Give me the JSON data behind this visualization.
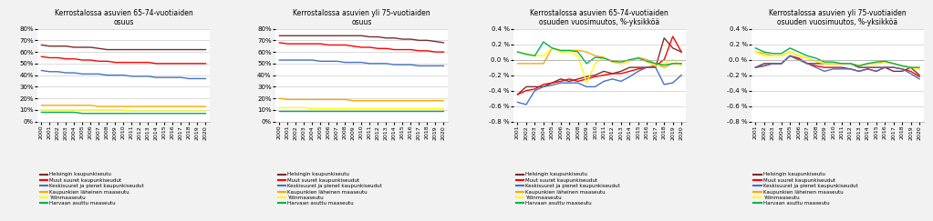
{
  "years_2000": [
    2000,
    2001,
    2002,
    2003,
    2004,
    2005,
    2006,
    2007,
    2008,
    2009,
    2010,
    2011,
    2012,
    2013,
    2014,
    2015,
    2016,
    2017,
    2018,
    2019,
    2020
  ],
  "years_2001": [
    2001,
    2002,
    2003,
    2004,
    2005,
    2006,
    2007,
    2008,
    2009,
    2010,
    2011,
    2012,
    2013,
    2014,
    2015,
    2016,
    2017,
    2018,
    2019,
    2020
  ],
  "chart1": {
    "title": "Kerrostalossa asuvien 65-74-vuotiaiden\nosuus",
    "helsingin": [
      66,
      65,
      65,
      65,
      64,
      64,
      64,
      63,
      62,
      62,
      62,
      62,
      62,
      62,
      62,
      62,
      62,
      62,
      62,
      62,
      62
    ],
    "muut": [
      56,
      55,
      55,
      54,
      54,
      53,
      53,
      52,
      52,
      51,
      51,
      51,
      51,
      51,
      50,
      50,
      50,
      50,
      50,
      50,
      50
    ],
    "keskisuuret": [
      44,
      43,
      43,
      42,
      42,
      41,
      41,
      41,
      40,
      40,
      40,
      39,
      39,
      39,
      38,
      38,
      38,
      38,
      37,
      37,
      37
    ],
    "kaupunkien": [
      14,
      14,
      14,
      14,
      14,
      14,
      14,
      13,
      13,
      13,
      13,
      13,
      13,
      13,
      13,
      13,
      13,
      13,
      13,
      13,
      13
    ],
    "ydin": [
      10,
      10,
      10,
      10,
      10,
      10,
      10,
      10,
      10,
      10,
      10,
      9,
      9,
      9,
      9,
      9,
      9,
      9,
      9,
      9,
      9
    ],
    "harvaan": [
      8,
      8,
      8,
      8,
      8,
      7,
      7,
      7,
      7,
      7,
      7,
      7,
      7,
      7,
      7,
      7,
      7,
      7,
      7,
      7,
      7
    ],
    "ylim": [
      0,
      80
    ],
    "yticks": [
      0,
      10,
      20,
      30,
      40,
      50,
      60,
      70,
      80
    ]
  },
  "chart2": {
    "title": "Kerrostalossa asuvien yli 75-vuotiaiden\nosuus",
    "helsingin": [
      74,
      74,
      74,
      74,
      74,
      74,
      74,
      74,
      74,
      74,
      74,
      73,
      73,
      72,
      72,
      71,
      71,
      70,
      70,
      69,
      68
    ],
    "muut": [
      68,
      67,
      67,
      67,
      67,
      67,
      66,
      66,
      66,
      65,
      64,
      64,
      63,
      63,
      62,
      62,
      62,
      61,
      61,
      60,
      60
    ],
    "keskisuuret": [
      53,
      53,
      53,
      53,
      53,
      52,
      52,
      52,
      51,
      51,
      51,
      50,
      50,
      50,
      49,
      49,
      49,
      48,
      48,
      48,
      48
    ],
    "kaupunkien": [
      20,
      19,
      19,
      19,
      19,
      19,
      19,
      19,
      19,
      18,
      18,
      18,
      18,
      18,
      18,
      18,
      18,
      18,
      18,
      18,
      18
    ],
    "ydin": [
      12,
      12,
      12,
      12,
      11,
      11,
      11,
      11,
      11,
      11,
      11,
      11,
      11,
      11,
      11,
      11,
      11,
      11,
      11,
      11,
      11
    ],
    "harvaan": [
      9,
      9,
      9,
      9,
      9,
      9,
      9,
      9,
      9,
      9,
      9,
      9,
      9,
      9,
      9,
      9,
      9,
      9,
      9,
      9,
      9
    ],
    "ylim": [
      0,
      80
    ],
    "yticks": [
      0,
      10,
      20,
      30,
      40,
      50,
      60,
      70,
      80
    ]
  },
  "chart3": {
    "title": "Kerrostalossa asuvien 65-74-vuotiaiden\nosuuden vuosimuutos, %-yksikköä",
    "helsingin": [
      -0.45,
      -0.35,
      -0.35,
      -0.35,
      -0.3,
      -0.25,
      -0.28,
      -0.25,
      -0.22,
      -0.2,
      -0.15,
      -0.18,
      -0.15,
      -0.1,
      -0.1,
      -0.1,
      -0.1,
      0.28,
      0.15,
      0.1
    ],
    "muut": [
      -0.45,
      -0.4,
      -0.38,
      -0.32,
      -0.3,
      -0.28,
      -0.25,
      -0.28,
      -0.25,
      -0.22,
      -0.2,
      -0.18,
      -0.18,
      -0.15,
      -0.12,
      -0.1,
      -0.08,
      0.0,
      0.3,
      0.1
    ],
    "keskisuuret": [
      -0.55,
      -0.58,
      -0.4,
      -0.35,
      -0.33,
      -0.3,
      -0.3,
      -0.3,
      -0.35,
      -0.35,
      -0.28,
      -0.25,
      -0.28,
      -0.22,
      -0.15,
      -0.1,
      -0.1,
      -0.32,
      -0.3,
      -0.2
    ],
    "kaupunkien": [
      -0.05,
      -0.05,
      -0.05,
      -0.05,
      0.15,
      0.1,
      0.12,
      0.12,
      0.1,
      0.05,
      0.03,
      -0.03,
      -0.05,
      -0.02,
      0.03,
      0.0,
      -0.05,
      -0.1,
      -0.05,
      -0.05
    ],
    "ydin": [
      0.1,
      0.08,
      0.05,
      0.05,
      0.15,
      0.1,
      0.1,
      0.05,
      -0.3,
      -0.05,
      0.03,
      -0.02,
      -0.05,
      -0.02,
      0.03,
      -0.03,
      -0.08,
      -0.05,
      0.0,
      -0.08
    ],
    "harvaan": [
      0.1,
      0.07,
      0.05,
      0.23,
      0.15,
      0.12,
      0.12,
      0.1,
      -0.05,
      0.03,
      0.02,
      -0.02,
      -0.03,
      0.0,
      0.02,
      -0.02,
      -0.05,
      -0.07,
      -0.05,
      -0.05
    ],
    "ylim": [
      -0.8,
      0.4
    ],
    "yticks": [
      -0.8,
      -0.6,
      -0.4,
      -0.2,
      0.0,
      0.2,
      0.4
    ]
  },
  "chart4": {
    "title": "Kerrostalossa asuvien yli 75-vuotiaiden\nosuuden vuosimuutos, %-yksikköä",
    "helsingin": [
      -0.1,
      -0.05,
      -0.05,
      -0.05,
      0.05,
      0.0,
      -0.05,
      -0.05,
      -0.05,
      -0.05,
      -0.05,
      -0.05,
      -0.1,
      -0.1,
      -0.1,
      -0.1,
      -0.15,
      -0.15,
      -0.1,
      -0.2
    ],
    "muut": [
      -0.1,
      -0.08,
      -0.05,
      -0.05,
      0.05,
      0.02,
      -0.05,
      -0.08,
      -0.1,
      -0.1,
      -0.1,
      -0.12,
      -0.15,
      -0.12,
      -0.15,
      -0.1,
      -0.1,
      -0.12,
      -0.15,
      -0.22
    ],
    "keskisuuret": [
      -0.1,
      -0.08,
      -0.05,
      -0.05,
      0.05,
      0.0,
      -0.05,
      -0.1,
      -0.15,
      -0.12,
      -0.12,
      -0.12,
      -0.15,
      -0.12,
      -0.15,
      -0.1,
      -0.1,
      -0.12,
      -0.18,
      -0.25
    ],
    "kaupunkien": [
      0.1,
      0.08,
      0.05,
      0.05,
      0.1,
      0.05,
      0.02,
      -0.02,
      -0.05,
      -0.05,
      -0.05,
      -0.05,
      -0.08,
      -0.05,
      -0.05,
      -0.03,
      -0.05,
      -0.08,
      -0.1,
      -0.12
    ],
    "ydin": [
      0.1,
      0.05,
      0.05,
      0.05,
      0.1,
      0.05,
      0.02,
      -0.02,
      -0.05,
      -0.05,
      -0.05,
      -0.05,
      -0.08,
      -0.05,
      -0.05,
      -0.03,
      -0.05,
      -0.08,
      -0.1,
      -0.12
    ],
    "harvaan": [
      0.15,
      0.1,
      0.08,
      0.08,
      0.15,
      0.1,
      0.05,
      0.02,
      -0.03,
      -0.03,
      -0.05,
      -0.05,
      -0.08,
      -0.05,
      -0.03,
      -0.02,
      -0.05,
      -0.08,
      -0.1,
      -0.1
    ],
    "ylim": [
      -0.8,
      0.4
    ],
    "yticks": [
      -0.8,
      -0.6,
      -0.4,
      -0.2,
      0.0,
      0.2,
      0.4
    ]
  },
  "colors": {
    "helsingin": "#7B2C2C",
    "muut": "#FF0000",
    "keskisuuret": "#4472C4",
    "kaupunkien": "#FFA500",
    "ydin": "#FFFF00",
    "harvaan": "#00B050"
  },
  "legend_labels": [
    "Helsingin kaupunkiseutu",
    "Muut suuret kaupunkiseudut",
    "Keskisuuret ja pienet kaupunkiseudut",
    "Kaupunkien läheinen maaseutu",
    "Ydinmaaseutu",
    "Harvaan asuttu maaseutu"
  ],
  "background_color": "#F2F2F2",
  "plot_bg": "#FFFFFF"
}
